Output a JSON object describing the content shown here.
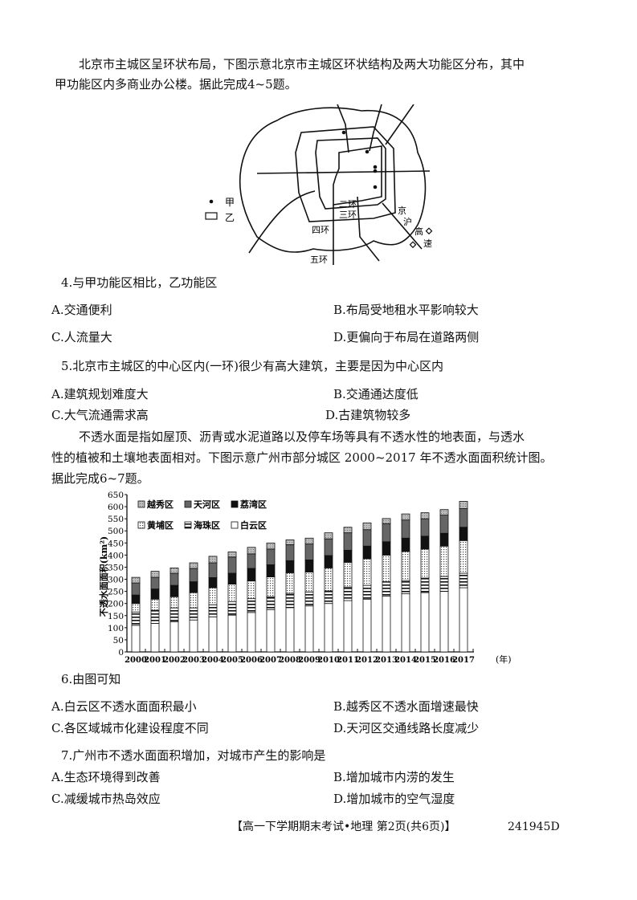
{
  "intro1": {
    "lines": [
      "北京市主城区呈环状布局，下图示意北京市主城区环状结构及两大功能区分布，其中",
      "甲功能区内多商业办公楼。据此完成4~5题。"
    ]
  },
  "map": {
    "legend": [
      {
        "symbol": "dot",
        "label": "甲"
      },
      {
        "symbol": "rectangle",
        "label": "乙"
      }
    ],
    "labels": {
      "ring2": "二环",
      "ring3": "三环",
      "ring4": "四环",
      "ring5": "五环",
      "highway": [
        "京",
        "沪",
        "高",
        "速"
      ]
    }
  },
  "q4": {
    "stem": "4.与甲功能区相比，乙功能区",
    "options": [
      "A.交通便利",
      "B.布局受地租水平影响较大",
      "C.人流量大",
      "D.更偏向于布局在道路两侧"
    ]
  },
  "q5": {
    "stem": "5.北京市主城区的中心区内(一环)很少有高大建筑，主要是因为中心区内",
    "options": [
      "A.建筑规划难度大",
      "B.交通通达度低",
      "C.大气流通需求高",
      "D.古建筑物较多"
    ]
  },
  "intro2": {
    "lines": [
      "不透水面是指如屋顶、沥青或水泥道路以及停车场等具有不透水性的地表面，与透水",
      "性的植被和土壤地表面相对。下图示意广州市部分城区 2000~2017 年不透水面面积统计图。",
      "据此完成6~7题。"
    ]
  },
  "chart_data": {
    "type": "bar",
    "stacked": true,
    "title": "",
    "xlabel": "(年)",
    "ylabel": "不透水面面积(km²)",
    "ylim": [
      0,
      650
    ],
    "yticks": [
      "0",
      "50",
      "100",
      "150",
      "200",
      "250",
      "300",
      "350",
      "400",
      "450",
      "500",
      "550",
      "600",
      "650"
    ],
    "grid": false,
    "legend_placement": "top-left",
    "categories": [
      "2000",
      "2001",
      "2002",
      "2003",
      "2004",
      "2005",
      "2006",
      "2007",
      "2008",
      "2009",
      "2010",
      "2011",
      "2012",
      "2013",
      "2014",
      "2015",
      "2016",
      "2017"
    ],
    "series": [
      {
        "name": "白云区",
        "pattern": "white",
        "values": [
          110,
          118,
          125,
          132,
          145,
          152,
          163,
          175,
          183,
          190,
          200,
          212,
          218,
          230,
          240,
          245,
          250,
          265
        ]
      },
      {
        "name": "海珠区",
        "pattern": "horizontal-stripes",
        "values": [
          55,
          54,
          57,
          50,
          50,
          55,
          57,
          53,
          59,
          58,
          52,
          56,
          57,
          60,
          55,
          60,
          62,
          60
        ]
      },
      {
        "name": "黄埔区",
        "pattern": "dotted-grid",
        "values": [
          35,
          46,
          46,
          63,
          70,
          73,
          73,
          82,
          85,
          82,
          95,
          102,
          110,
          110,
          120,
          120,
          125,
          135
        ]
      },
      {
        "name": "荔湾区",
        "pattern": "black",
        "values": [
          35,
          42,
          47,
          45,
          42,
          45,
          52,
          50,
          50,
          50,
          51,
          50,
          52,
          55,
          55,
          53,
          53,
          55
        ]
      },
      {
        "name": "天河区",
        "pattern": "dark-gray",
        "values": [
          50,
          48,
          50,
          55,
          61,
          67,
          60,
          65,
          66,
          66,
          69,
          72,
          68,
          75,
          75,
          72,
          75,
          77
        ]
      },
      {
        "name": "越秀区",
        "pattern": "light-gray",
        "values": [
          23,
          25,
          22,
          23,
          27,
          21,
          27,
          25,
          20,
          24,
          25,
          23,
          28,
          21,
          25,
          25,
          23,
          30
        ]
      }
    ],
    "legend_order": [
      "越秀区",
      "天河区",
      "荔湾区",
      "黄埔区",
      "海珠区",
      "白云区"
    ]
  },
  "q6": {
    "stem": "6.由图可知",
    "options": [
      "A.白云区不透水面面积最小",
      "B.越秀区不透水面增速最快",
      "C.各区域城市化建设程度不同",
      "D.天河区交通线路长度减少"
    ]
  },
  "q7": {
    "stem": "7.广州市不透水面面积增加，对城市产生的影响是",
    "options": [
      "A.生态环境得到改善",
      "B.增加城市内涝的发生",
      "C.减缓城市热岛效应",
      "D.增加城市的空气湿度"
    ]
  },
  "footer": {
    "title": "【高一下学期期末考试•地理 第2页(共6页)】",
    "code": "241945D"
  }
}
